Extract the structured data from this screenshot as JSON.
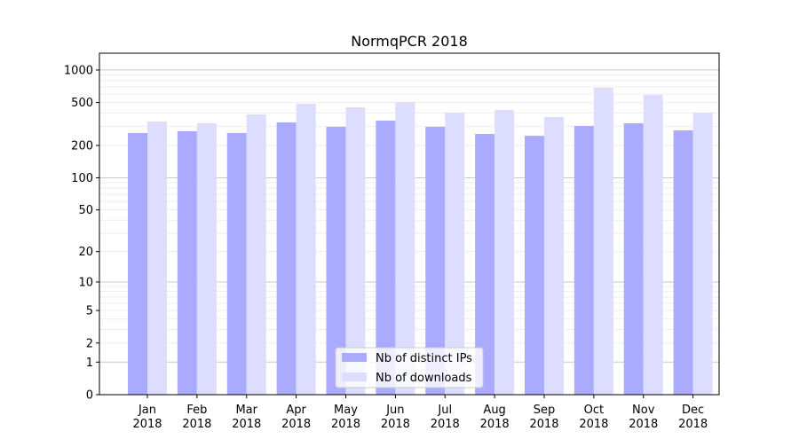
{
  "chart_data": {
    "type": "bar",
    "title": "NormqPCR 2018",
    "xlabel": "",
    "ylabel": "",
    "yscale": "log10(1+y)",
    "ylim": [
      0,
      1430
    ],
    "yticks": [
      0,
      1,
      2,
      5,
      10,
      20,
      50,
      100,
      200,
      500,
      1000
    ],
    "ytick_labels": [
      "0",
      "1",
      "2",
      "5",
      "10",
      "20",
      "50",
      "100",
      "200",
      "500",
      "1000"
    ],
    "categories": [
      "Jan\n2018",
      "Feb\n2018",
      "Mar\n2018",
      "Apr\n2018",
      "May\n2018",
      "Jun\n2018",
      "Jul\n2018",
      "Aug\n2018",
      "Sep\n2018",
      "Oct\n2018",
      "Nov\n2018",
      "Dec\n2018"
    ],
    "category_months": [
      "Jan",
      "Feb",
      "Mar",
      "Apr",
      "May",
      "Jun",
      "Jul",
      "Aug",
      "Sep",
      "Oct",
      "Nov",
      "Dec"
    ],
    "category_year": "2018",
    "series": [
      {
        "name": "Nb of distinct IPs",
        "color": "#aaaaff",
        "values": [
          261,
          271,
          261,
          327,
          298,
          340,
          298,
          256,
          246,
          304,
          321,
          276
        ]
      },
      {
        "name": "Nb of downloads",
        "color": "#ddddff",
        "values": [
          334,
          321,
          388,
          487,
          452,
          506,
          403,
          427,
          367,
          685,
          588,
          403
        ]
      }
    ],
    "grid": true,
    "legend_position": "bottom-center"
  }
}
